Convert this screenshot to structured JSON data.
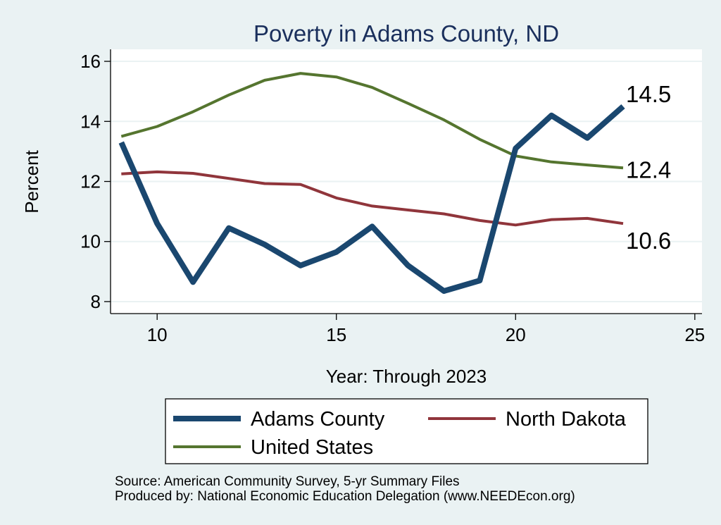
{
  "chart_data": {
    "type": "line",
    "title": "Poverty in Adams County, ND",
    "xlabel": "Year: Through 2023",
    "ylabel": "Percent",
    "xlim": [
      8.7,
      25.2
    ],
    "ylim": [
      7.6,
      16.4
    ],
    "xticks": [
      10,
      15,
      20,
      25
    ],
    "yticks": [
      8,
      10,
      12,
      14,
      16
    ],
    "grid": true,
    "legend_position": "bottom",
    "series": [
      {
        "name": "Adams County",
        "color": "#1a476f",
        "x": [
          9,
          10,
          11,
          12,
          13,
          14,
          15,
          16,
          17,
          18,
          19,
          20,
          21,
          22,
          23
        ],
        "values": [
          13.3,
          10.6,
          8.65,
          10.45,
          9.9,
          9.2,
          9.65,
          10.5,
          9.2,
          8.35,
          8.7,
          13.1,
          14.2,
          13.45,
          14.5
        ],
        "end_label": "14.5"
      },
      {
        "name": "North Dakota",
        "color": "#90353b",
        "x": [
          9,
          10,
          11,
          12,
          13,
          14,
          15,
          16,
          17,
          18,
          19,
          20,
          21,
          22,
          23
        ],
        "values": [
          12.25,
          12.32,
          12.27,
          12.1,
          11.93,
          11.9,
          11.45,
          11.18,
          11.05,
          10.92,
          10.7,
          10.55,
          10.73,
          10.77,
          10.6
        ],
        "end_label": "10.6"
      },
      {
        "name": "United States",
        "color": "#55752f",
        "x": [
          9,
          10,
          11,
          12,
          13,
          14,
          15,
          16,
          17,
          18,
          19,
          20,
          21,
          22,
          23
        ],
        "values": [
          13.5,
          13.83,
          14.32,
          14.88,
          15.37,
          15.6,
          15.48,
          15.13,
          14.6,
          14.05,
          13.4,
          12.85,
          12.65,
          12.55,
          12.45
        ],
        "end_label": "12.4"
      }
    ]
  },
  "footer": {
    "source": "Source: American Community Survey, 5-yr Summary Files",
    "produced_by": "Produced by: National Economic Education Delegation (www.NEEDEcon.org)"
  }
}
